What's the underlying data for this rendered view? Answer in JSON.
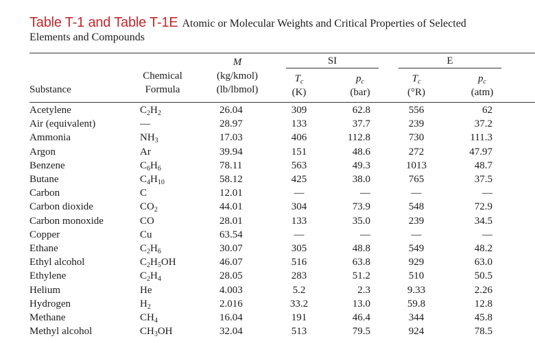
{
  "title": {
    "label": "Table T-1 and Table T-1E",
    "description": "Atomic or Molecular Weights and Critical Properties of Selected",
    "description_line2": "Elements and Compounds"
  },
  "headers": {
    "substance": "Substance",
    "formula_line1": "Chemical",
    "formula_line2": "Formula",
    "mw_symbol": "M",
    "mw_unit_si": "(kg/kmol)",
    "mw_unit_e": "(lb/lbmol)",
    "si_group": "SI",
    "e_group": "E",
    "tc_symbol": "T",
    "tc_sub": "c",
    "pc_symbol": "p",
    "pc_sub": "c",
    "tc_unit_si": "(K)",
    "pc_unit_si": "(bar)",
    "tc_unit_e": "(°R)",
    "pc_unit_e": "(atm)"
  },
  "rows": [
    {
      "name": "Acetylene",
      "formula": [
        [
          "C",
          ""
        ],
        [
          "",
          "2"
        ],
        [
          "H",
          ""
        ],
        [
          "",
          "2"
        ]
      ],
      "mw": "26.04",
      "tc_si": "309",
      "pc_si": "62.8",
      "tc_e": "556",
      "pc_e": "62"
    },
    {
      "name": "Air (equivalent)",
      "formula": [
        [
          "—",
          ""
        ]
      ],
      "mw": "28.97",
      "tc_si": "133",
      "pc_si": "37.7",
      "tc_e": "239",
      "pc_e": "37.2"
    },
    {
      "name": "Ammonia",
      "formula": [
        [
          "NH",
          ""
        ],
        [
          "",
          "3"
        ]
      ],
      "mw": "17.03",
      "tc_si": "406",
      "pc_si": "112.8",
      "tc_e": "730",
      "pc_e": "111.3"
    },
    {
      "name": "Argon",
      "formula": [
        [
          "Ar",
          ""
        ]
      ],
      "mw": "39.94",
      "tc_si": "151",
      "pc_si": "48.6",
      "tc_e": "272",
      "pc_e": "47.97"
    },
    {
      "name": "Benzene",
      "formula": [
        [
          "C",
          ""
        ],
        [
          "",
          "6"
        ],
        [
          "H",
          ""
        ],
        [
          "",
          "6"
        ]
      ],
      "mw": "78.11",
      "tc_si": "563",
      "pc_si": "49.3",
      "tc_e": "1013",
      "pc_e": "48.7"
    },
    {
      "name": "Butane",
      "formula": [
        [
          "C",
          ""
        ],
        [
          "",
          "4"
        ],
        [
          "H",
          ""
        ],
        [
          "",
          "10"
        ]
      ],
      "mw": "58.12",
      "tc_si": "425",
      "pc_si": "38.0",
      "tc_e": "765",
      "pc_e": "37.5"
    },
    {
      "name": "Carbon",
      "formula": [
        [
          "C",
          ""
        ]
      ],
      "mw": "12.01",
      "tc_si": "—",
      "pc_si": "—",
      "tc_e": "—",
      "pc_e": "—"
    },
    {
      "name": "Carbon dioxide",
      "formula": [
        [
          "CO",
          ""
        ],
        [
          "",
          "2"
        ]
      ],
      "mw": "44.01",
      "tc_si": "304",
      "pc_si": "73.9",
      "tc_e": "548",
      "pc_e": "72.9"
    },
    {
      "name": "Carbon monoxide",
      "formula": [
        [
          "CO",
          ""
        ]
      ],
      "mw": "28.01",
      "tc_si": "133",
      "pc_si": "35.0",
      "tc_e": "239",
      "pc_e": "34.5"
    },
    {
      "name": "Copper",
      "formula": [
        [
          "Cu",
          ""
        ]
      ],
      "mw": "63.54",
      "tc_si": "—",
      "pc_si": "—",
      "tc_e": "—",
      "pc_e": "—"
    },
    {
      "name": "Ethane",
      "formula": [
        [
          "C",
          ""
        ],
        [
          "",
          "2"
        ],
        [
          "H",
          ""
        ],
        [
          "",
          "6"
        ]
      ],
      "mw": "30.07",
      "tc_si": "305",
      "pc_si": "48.8",
      "tc_e": "549",
      "pc_e": "48.2"
    },
    {
      "name": "Ethyl alcohol",
      "formula": [
        [
          "C",
          ""
        ],
        [
          "",
          "2"
        ],
        [
          "H",
          ""
        ],
        [
          "",
          "5"
        ],
        [
          "OH",
          ""
        ]
      ],
      "mw": "46.07",
      "tc_si": "516",
      "pc_si": "63.8",
      "tc_e": "929",
      "pc_e": "63.0"
    },
    {
      "name": "Ethylene",
      "formula": [
        [
          "C",
          ""
        ],
        [
          "",
          "2"
        ],
        [
          "H",
          ""
        ],
        [
          "",
          "4"
        ]
      ],
      "mw": "28.05",
      "tc_si": "283",
      "pc_si": "51.2",
      "tc_e": "510",
      "pc_e": "50.5"
    },
    {
      "name": "Helium",
      "formula": [
        [
          "He",
          ""
        ]
      ],
      "mw": "4.003",
      "tc_si": "5.2",
      "pc_si": "2.3",
      "tc_e": "9.33",
      "pc_e": "2.26"
    },
    {
      "name": "Hydrogen",
      "formula": [
        [
          "H",
          ""
        ],
        [
          "",
          "2"
        ]
      ],
      "mw": "2.016",
      "tc_si": "33.2",
      "pc_si": "13.0",
      "tc_e": "59.8",
      "pc_e": "12.8"
    },
    {
      "name": "Methane",
      "formula": [
        [
          "CH",
          ""
        ],
        [
          "",
          "4"
        ]
      ],
      "mw": "16.04",
      "tc_si": "191",
      "pc_si": "46.4",
      "tc_e": "344",
      "pc_e": "45.8"
    },
    {
      "name": "Methyl alcohol",
      "formula": [
        [
          "CH",
          ""
        ],
        [
          "",
          "3"
        ],
        [
          "OH",
          ""
        ]
      ],
      "mw": "32.04",
      "tc_si": "513",
      "pc_si": "79.5",
      "tc_e": "924",
      "pc_e": "78.5"
    }
  ]
}
